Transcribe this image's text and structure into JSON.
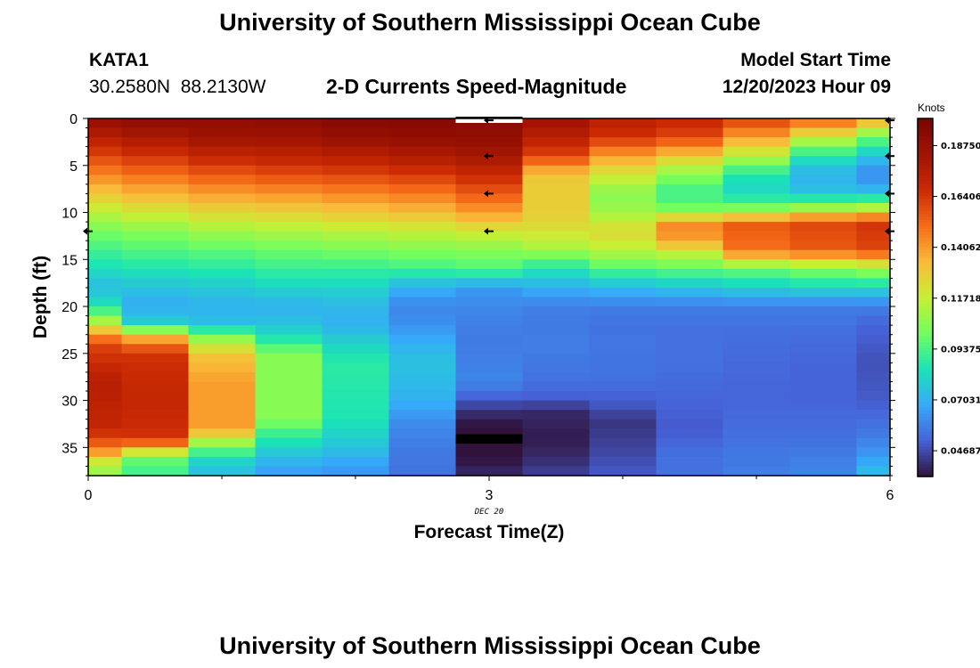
{
  "page": {
    "title": "University of Southern Mississippi Ocean Cube",
    "footer_title": "University of Southern Mississippi Ocean Cube"
  },
  "station": {
    "id": "KATA1",
    "coords": "30.2580N  88.2130W"
  },
  "model": {
    "label": "Model Start Time",
    "time": "12/20/2023 Hour 09"
  },
  "chart_data": {
    "type": "heatmap",
    "title": "2-D Currents Speed-Magnitude",
    "xlabel": "Forecast Time(Z)",
    "ylabel": "Depth (ft)",
    "x_ticks": [
      "0",
      "3",
      "6"
    ],
    "x_tick_values": [
      0,
      3,
      6
    ],
    "x_sublabel": "DEC 20",
    "y_ticks": [
      "0",
      "5",
      "10",
      "15",
      "20",
      "25",
      "30",
      "35"
    ],
    "y_tick_values": [
      0,
      5,
      10,
      15,
      20,
      25,
      30,
      35
    ],
    "xlim": [
      0,
      6
    ],
    "ylim": [
      0,
      38
    ],
    "colorbar": {
      "unit": "Knots",
      "min": 0.035,
      "max": 0.2,
      "ticks": [
        "0.04687",
        "0.07031",
        "0.09375",
        "0.11718",
        "0.14062",
        "0.16406",
        "0.18750"
      ],
      "tick_values": [
        0.04687,
        0.07031,
        0.09375,
        0.11718,
        0.14062,
        0.16406,
        0.1875
      ]
    },
    "columns": [
      {
        "x_start": 0.0,
        "x_end": 0.25,
        "values": [
          [
            0,
            0.19
          ],
          [
            2,
            0.175
          ],
          [
            4,
            0.16
          ],
          [
            6,
            0.145
          ],
          [
            8,
            0.13
          ],
          [
            10,
            0.115
          ],
          [
            12,
            0.102
          ],
          [
            14,
            0.092
          ],
          [
            16,
            0.083
          ],
          [
            18,
            0.073
          ],
          [
            20,
            0.085
          ],
          [
            22,
            0.12
          ],
          [
            24,
            0.16
          ],
          [
            28,
            0.175
          ],
          [
            33,
            0.17
          ],
          [
            35,
            0.15
          ],
          [
            36,
            0.13
          ],
          [
            37,
            0.11
          ],
          [
            38,
            0.11
          ]
        ]
      },
      {
        "x_start": 0.25,
        "x_end": 0.75,
        "values": [
          [
            0,
            0.192
          ],
          [
            2,
            0.18
          ],
          [
            4,
            0.165
          ],
          [
            6,
            0.15
          ],
          [
            8,
            0.135
          ],
          [
            10,
            0.12
          ],
          [
            12,
            0.105
          ],
          [
            14,
            0.095
          ],
          [
            16,
            0.085
          ],
          [
            18,
            0.075
          ],
          [
            20,
            0.068
          ],
          [
            22,
            0.08
          ],
          [
            23,
            0.13
          ],
          [
            25,
            0.165
          ],
          [
            30,
            0.17
          ],
          [
            34,
            0.165
          ],
          [
            35,
            0.14
          ],
          [
            36,
            0.1
          ],
          [
            37,
            0.095
          ],
          [
            38,
            0.09
          ]
        ]
      },
      {
        "x_start": 0.75,
        "x_end": 1.25,
        "values": [
          [
            0,
            0.19
          ],
          [
            2,
            0.185
          ],
          [
            4,
            0.17
          ],
          [
            6,
            0.155
          ],
          [
            8,
            0.14
          ],
          [
            10,
            0.125
          ],
          [
            12,
            0.11
          ],
          [
            14,
            0.097
          ],
          [
            16,
            0.087
          ],
          [
            18,
            0.077
          ],
          [
            20,
            0.07
          ],
          [
            22,
            0.075
          ],
          [
            23,
            0.1
          ],
          [
            25,
            0.13
          ],
          [
            28,
            0.14
          ],
          [
            33,
            0.14
          ],
          [
            34,
            0.12
          ],
          [
            35,
            0.1
          ],
          [
            36,
            0.085
          ],
          [
            37,
            0.075
          ],
          [
            38,
            0.075
          ]
        ]
      },
      {
        "x_start": 1.25,
        "x_end": 1.75,
        "values": [
          [
            0,
            0.192
          ],
          [
            2,
            0.185
          ],
          [
            4,
            0.172
          ],
          [
            6,
            0.158
          ],
          [
            8,
            0.142
          ],
          [
            10,
            0.127
          ],
          [
            12,
            0.112
          ],
          [
            14,
            0.1
          ],
          [
            16,
            0.09
          ],
          [
            18,
            0.08
          ],
          [
            20,
            0.07
          ],
          [
            22,
            0.075
          ],
          [
            24,
            0.09
          ],
          [
            25,
            0.105
          ],
          [
            32,
            0.105
          ],
          [
            33,
            0.095
          ],
          [
            35,
            0.08
          ],
          [
            37,
            0.068
          ],
          [
            38,
            0.065
          ]
        ]
      },
      {
        "x_start": 1.75,
        "x_end": 2.25,
        "values": [
          [
            0,
            0.195
          ],
          [
            2,
            0.188
          ],
          [
            4,
            0.175
          ],
          [
            6,
            0.16
          ],
          [
            8,
            0.145
          ],
          [
            10,
            0.13
          ],
          [
            12,
            0.115
          ],
          [
            14,
            0.102
          ],
          [
            16,
            0.09
          ],
          [
            18,
            0.08
          ],
          [
            20,
            0.072
          ],
          [
            22,
            0.07
          ],
          [
            24,
            0.08
          ],
          [
            26,
            0.088
          ],
          [
            32,
            0.085
          ],
          [
            35,
            0.075
          ],
          [
            37,
            0.065
          ],
          [
            38,
            0.063
          ]
        ]
      },
      {
        "x_start": 2.25,
        "x_end": 2.75,
        "values": [
          [
            0,
            0.195
          ],
          [
            2,
            0.19
          ],
          [
            4,
            0.178
          ],
          [
            6,
            0.163
          ],
          [
            8,
            0.148
          ],
          [
            10,
            0.133
          ],
          [
            12,
            0.117
          ],
          [
            14,
            0.104
          ],
          [
            16,
            0.092
          ],
          [
            18,
            0.07
          ],
          [
            20,
            0.06
          ],
          [
            22,
            0.062
          ],
          [
            24,
            0.07
          ],
          [
            26,
            0.075
          ],
          [
            30,
            0.07
          ],
          [
            32,
            0.062
          ],
          [
            35,
            0.057
          ],
          [
            38,
            0.055
          ]
        ]
      },
      {
        "x_start": 2.75,
        "x_end": 3.25,
        "values": [
          [
            0,
            0.192
          ],
          [
            2,
            0.19
          ],
          [
            4,
            0.182
          ],
          [
            6,
            0.168
          ],
          [
            8,
            0.155
          ],
          [
            10,
            0.14
          ],
          [
            12,
            0.12
          ],
          [
            14,
            0.105
          ],
          [
            16,
            0.095
          ],
          [
            18,
            0.065
          ],
          [
            20,
            0.06
          ],
          [
            22,
            0.058
          ],
          [
            24,
            0.057
          ],
          [
            28,
            0.06
          ],
          [
            30,
            0.05
          ],
          [
            31,
            0.042
          ],
          [
            34,
            0.03
          ],
          [
            36,
            0.035
          ],
          [
            38,
            0.04
          ]
        ]
      },
      {
        "x_start": 3.25,
        "x_end": 3.75,
        "values": [
          [
            0,
            0.185
          ],
          [
            2,
            0.175
          ],
          [
            4,
            0.16
          ],
          [
            6,
            0.13
          ],
          [
            8,
            0.128
          ],
          [
            10,
            0.128
          ],
          [
            12,
            0.122
          ],
          [
            14,
            0.11
          ],
          [
            16,
            0.085
          ],
          [
            18,
            0.07
          ],
          [
            20,
            0.058
          ],
          [
            22,
            0.057
          ],
          [
            24,
            0.058
          ],
          [
            28,
            0.055
          ],
          [
            30,
            0.05
          ],
          [
            31,
            0.04
          ],
          [
            34,
            0.037
          ],
          [
            36,
            0.04
          ],
          [
            38,
            0.045
          ]
        ]
      },
      {
        "x_start": 3.75,
        "x_end": 4.25,
        "values": [
          [
            0,
            0.175
          ],
          [
            2,
            0.165
          ],
          [
            4,
            0.14
          ],
          [
            6,
            0.12
          ],
          [
            8,
            0.105
          ],
          [
            10,
            0.11
          ],
          [
            12,
            0.125
          ],
          [
            14,
            0.115
          ],
          [
            16,
            0.095
          ],
          [
            18,
            0.072
          ],
          [
            20,
            0.058
          ],
          [
            22,
            0.055
          ],
          [
            24,
            0.056
          ],
          [
            28,
            0.055
          ],
          [
            31,
            0.048
          ],
          [
            32,
            0.042
          ],
          [
            35,
            0.045
          ],
          [
            38,
            0.05
          ]
        ]
      },
      {
        "x_start": 4.25,
        "x_end": 4.75,
        "values": [
          [
            0,
            0.17
          ],
          [
            2,
            0.16
          ],
          [
            4,
            0.13
          ],
          [
            6,
            0.105
          ],
          [
            8,
            0.09
          ],
          [
            10,
            0.105
          ],
          [
            11,
            0.145
          ],
          [
            13,
            0.14
          ],
          [
            14,
            0.12
          ],
          [
            16,
            0.098
          ],
          [
            18,
            0.075
          ],
          [
            20,
            0.058
          ],
          [
            22,
            0.055
          ],
          [
            26,
            0.055
          ],
          [
            30,
            0.052
          ],
          [
            33,
            0.05
          ],
          [
            36,
            0.055
          ],
          [
            38,
            0.055
          ]
        ]
      },
      {
        "x_start": 4.75,
        "x_end": 5.25,
        "values": [
          [
            0,
            0.162
          ],
          [
            2,
            0.14
          ],
          [
            4,
            0.115
          ],
          [
            6,
            0.085
          ],
          [
            8,
            0.08
          ],
          [
            10,
            0.11
          ],
          [
            11,
            0.155
          ],
          [
            14,
            0.15
          ],
          [
            15,
            0.125
          ],
          [
            16,
            0.1
          ],
          [
            18,
            0.078
          ],
          [
            20,
            0.058
          ],
          [
            22,
            0.055
          ],
          [
            26,
            0.053
          ],
          [
            30,
            0.052
          ],
          [
            34,
            0.055
          ],
          [
            38,
            0.058
          ]
        ]
      },
      {
        "x_start": 5.25,
        "x_end": 5.75,
        "values": [
          [
            0,
            0.155
          ],
          [
            2,
            0.12
          ],
          [
            4,
            0.085
          ],
          [
            6,
            0.07
          ],
          [
            8,
            0.075
          ],
          [
            10,
            0.12
          ],
          [
            11,
            0.16
          ],
          [
            14,
            0.155
          ],
          [
            15,
            0.13
          ],
          [
            16,
            0.105
          ],
          [
            18,
            0.08
          ],
          [
            20,
            0.058
          ],
          [
            22,
            0.055
          ],
          [
            26,
            0.052
          ],
          [
            30,
            0.052
          ],
          [
            34,
            0.055
          ],
          [
            38,
            0.06
          ]
        ]
      },
      {
        "x_start": 5.75,
        "x_end": 6.0,
        "values": [
          [
            0,
            0.14
          ],
          [
            2,
            0.1
          ],
          [
            4,
            0.075
          ],
          [
            6,
            0.06
          ],
          [
            8,
            0.075
          ],
          [
            10,
            0.125
          ],
          [
            11,
            0.165
          ],
          [
            14,
            0.16
          ],
          [
            15,
            0.135
          ],
          [
            16,
            0.11
          ],
          [
            18,
            0.08
          ],
          [
            20,
            0.058
          ],
          [
            22,
            0.052
          ],
          [
            26,
            0.048
          ],
          [
            30,
            0.05
          ],
          [
            34,
            0.058
          ],
          [
            36,
            0.065
          ],
          [
            38,
            0.075
          ]
        ]
      }
    ],
    "arrows": [
      {
        "x": 0.0,
        "depth": 12
      },
      {
        "x": 3.0,
        "depth": 0.2
      },
      {
        "x": 3.0,
        "depth": 4
      },
      {
        "x": 3.0,
        "depth": 8
      },
      {
        "x": 3.0,
        "depth": 12
      },
      {
        "x": 6.0,
        "depth": 0.2
      },
      {
        "x": 6.0,
        "depth": 4
      },
      {
        "x": 6.0,
        "depth": 8
      },
      {
        "x": 6.0,
        "depth": 12
      }
    ],
    "masked_cells": [
      {
        "x_start": 2.75,
        "x_end": 3.25,
        "depth_start": 33.6,
        "depth_end": 34.6
      }
    ],
    "header_bar": {
      "x_start": 2.75,
      "x_end": 3.25
    }
  }
}
